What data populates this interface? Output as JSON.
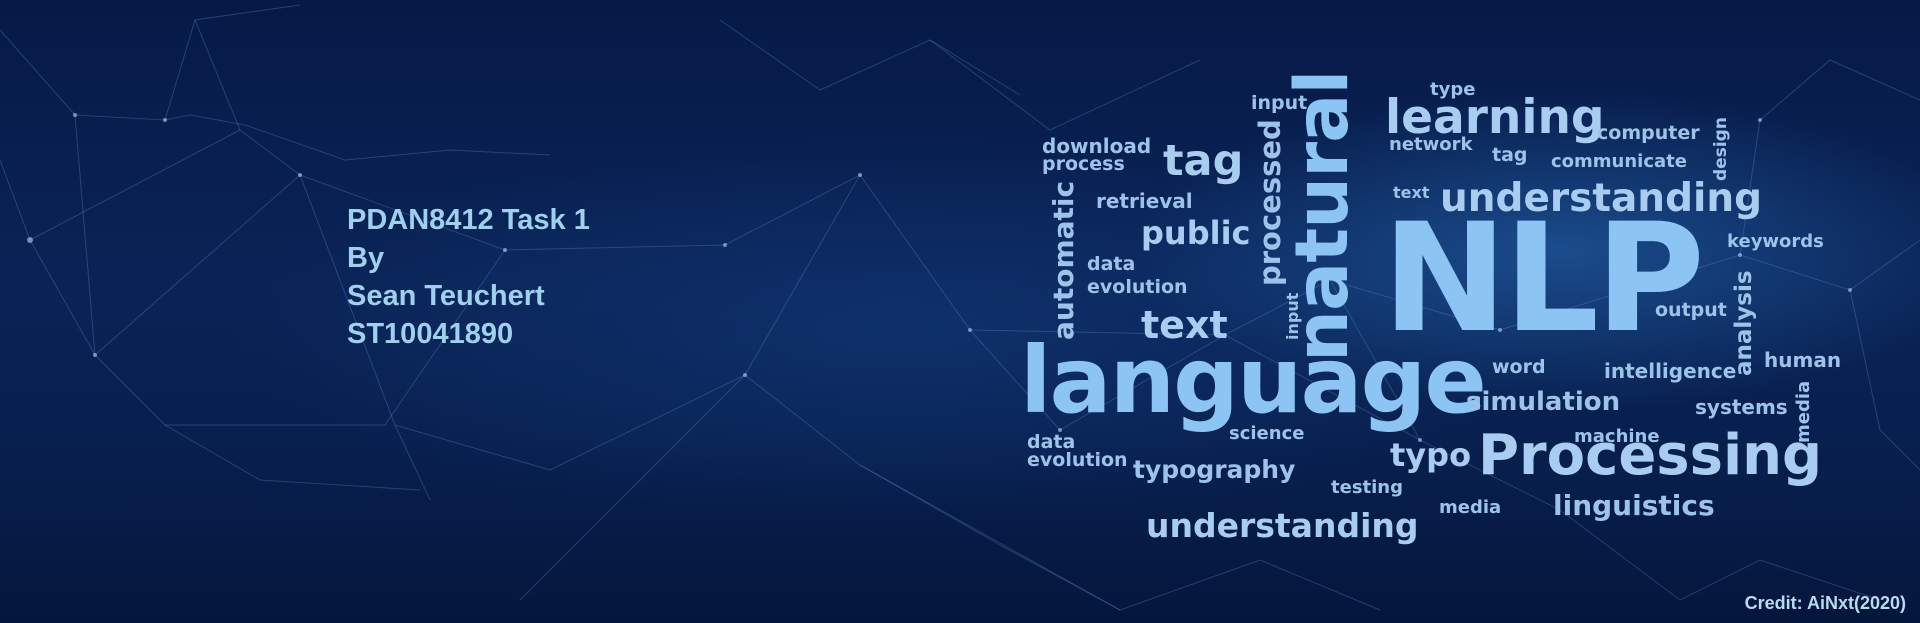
{
  "title_block": {
    "line1": "PDAN8412 Task 1",
    "line2": "By",
    "line3": "Sean Teuchert",
    "line4": "ST10041890"
  },
  "word_cloud": {
    "words": [
      "NLP",
      "language",
      "natural",
      "Processing",
      "learning",
      "understanding",
      "understanding",
      "tag",
      "tag",
      "text",
      "text",
      "public",
      "processed",
      "automatic",
      "input",
      "input",
      "download",
      "process",
      "retrieval",
      "data",
      "evolution",
      "data",
      "evolution",
      "type",
      "network",
      "computer",
      "communicate",
      "design",
      "keywords",
      "output",
      "analysis",
      "human",
      "intelligence",
      "word",
      "simulation",
      "systems",
      "media",
      "machine",
      "typo",
      "science",
      "typography",
      "testing",
      "media",
      "linguistics"
    ]
  },
  "credit": "Credit: AiNxt(2020)",
  "colors": {
    "background": "#0a1f4a",
    "title_text": "#9fd0ee",
    "cloud_text": "#a9cdf0"
  }
}
